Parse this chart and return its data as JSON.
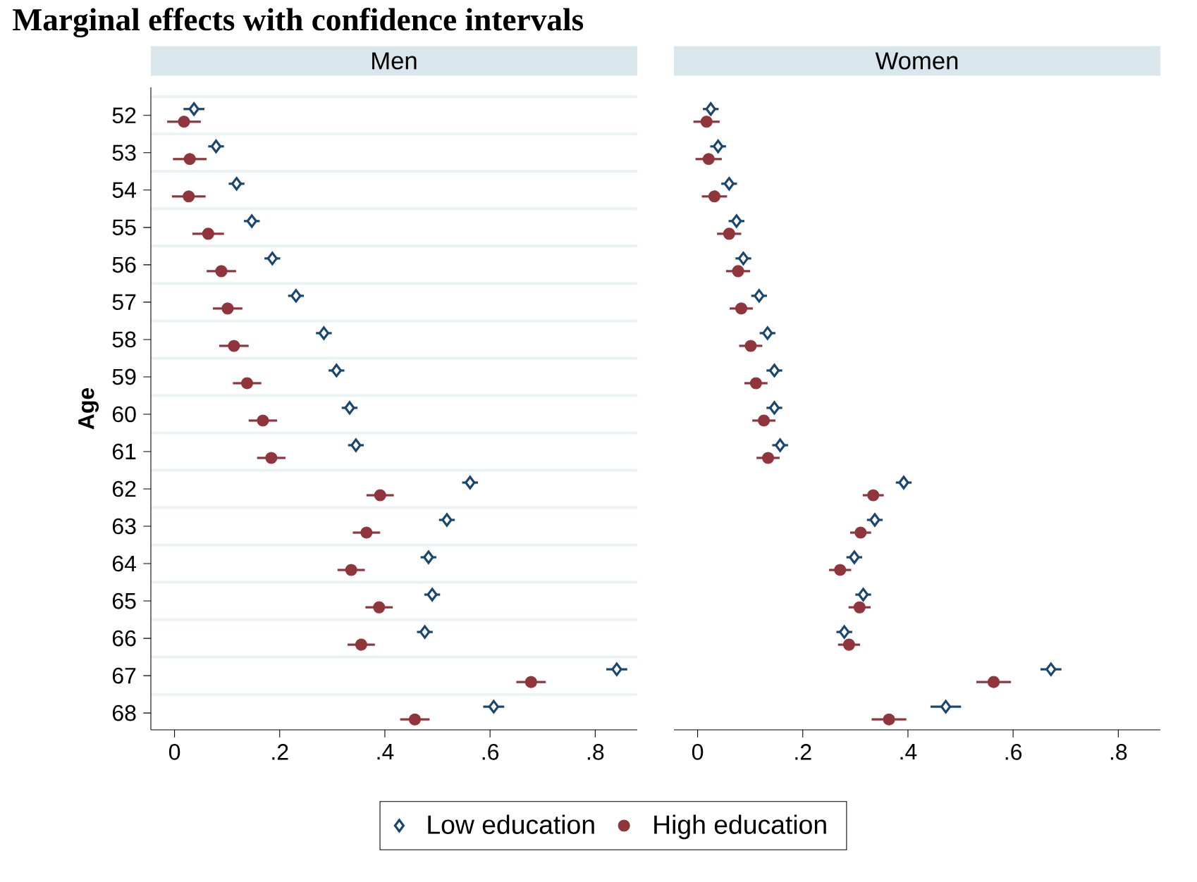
{
  "chart_data": [
    {
      "type": "scatter",
      "orientation": "horizontal",
      "title": "Marginal effects with confidence intervals",
      "subtitle": "Men",
      "ylabel": "Age",
      "categories": [
        "52",
        "53",
        "54",
        "55",
        "56",
        "57",
        "58",
        "59",
        "60",
        "61",
        "62",
        "63",
        "64",
        "65",
        "66",
        "67",
        "68"
      ],
      "series": [
        {
          "name": "Low education",
          "color": "#1a476f",
          "marker": "diamond",
          "values": [
            0.037,
            0.079,
            0.118,
            0.147,
            0.186,
            0.231,
            0.284,
            0.308,
            0.333,
            0.345,
            0.562,
            0.518,
            0.483,
            0.49,
            0.476,
            0.841,
            0.607
          ],
          "errors": [
            0.02,
            0.015,
            0.015,
            0.015,
            0.015,
            0.015,
            0.015,
            0.015,
            0.015,
            0.015,
            0.015,
            0.015,
            0.015,
            0.015,
            0.015,
            0.02,
            0.02
          ]
        },
        {
          "name": "High education",
          "color": "#90353b",
          "marker": "circle",
          "values": [
            0.018,
            0.029,
            0.027,
            0.064,
            0.089,
            0.101,
            0.113,
            0.138,
            0.168,
            0.184,
            0.391,
            0.365,
            0.336,
            0.389,
            0.355,
            0.678,
            0.457
          ],
          "errors": [
            0.032,
            0.032,
            0.032,
            0.03,
            0.028,
            0.028,
            0.028,
            0.027,
            0.027,
            0.027,
            0.026,
            0.026,
            0.026,
            0.026,
            0.026,
            0.028,
            0.028
          ]
        }
      ],
      "xlim": [
        -0.045,
        0.88
      ],
      "xticks": [
        0,
        {
          "value": 0.2,
          "label": ".2"
        },
        {
          "value": 0.4,
          "label": ".4"
        },
        {
          "value": 0.6,
          "label": ".6"
        },
        {
          "value": 0.8,
          "label": ".8"
        }
      ],
      "grid": "y",
      "legend": "bottom"
    },
    {
      "type": "scatter",
      "orientation": "horizontal",
      "subtitle": "Women",
      "categories": [
        "52",
        "53",
        "54",
        "55",
        "56",
        "57",
        "58",
        "59",
        "60",
        "61",
        "62",
        "63",
        "64",
        "65",
        "66",
        "67",
        "68"
      ],
      "series": [
        {
          "color": "#1a476f",
          "marker": "diamond",
          "values": [
            0.025,
            0.039,
            0.06,
            0.074,
            0.087,
            0.117,
            0.133,
            0.146,
            0.146,
            0.157,
            0.392,
            0.337,
            0.298,
            0.315,
            0.279,
            0.672,
            0.472
          ],
          "errors": [
            0.015,
            0.015,
            0.015,
            0.015,
            0.015,
            0.015,
            0.015,
            0.015,
            0.015,
            0.015,
            0.015,
            0.015,
            0.015,
            0.015,
            0.015,
            0.02,
            0.029
          ]
        },
        {
          "color": "#90353b",
          "marker": "circle",
          "values": [
            0.017,
            0.021,
            0.032,
            0.06,
            0.077,
            0.083,
            0.101,
            0.111,
            0.126,
            0.134,
            0.334,
            0.31,
            0.271,
            0.308,
            0.288,
            0.563,
            0.364
          ],
          "errors": [
            0.025,
            0.025,
            0.024,
            0.023,
            0.023,
            0.022,
            0.022,
            0.022,
            0.022,
            0.022,
            0.02,
            0.02,
            0.021,
            0.021,
            0.021,
            0.033,
            0.033
          ]
        }
      ],
      "xlim": [
        -0.045,
        0.88
      ],
      "xticks": [
        0,
        {
          "value": 0.2,
          "label": ".2"
        },
        {
          "value": 0.4,
          "label": ".4"
        },
        {
          "value": 0.6,
          "label": ".6"
        },
        {
          "value": 0.8,
          "label": ".8"
        }
      ],
      "grid": "y",
      "tick_labels": "x"
    }
  ]
}
